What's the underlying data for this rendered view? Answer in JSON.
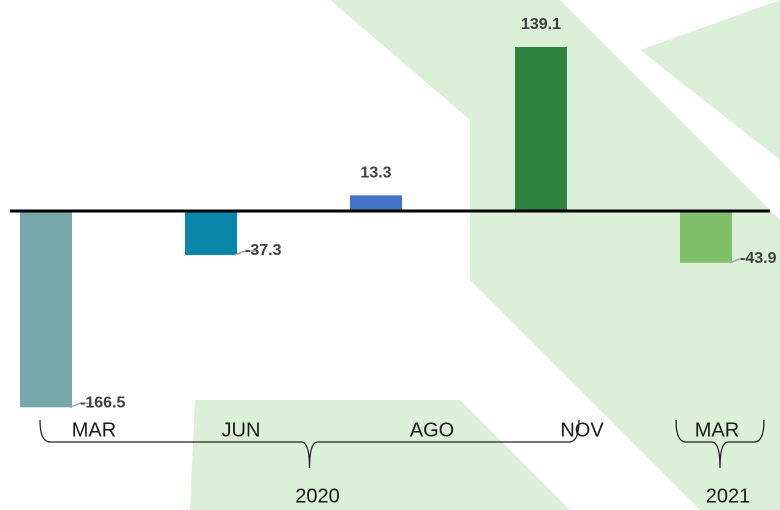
{
  "chart_data": {
    "type": "bar",
    "categories": [
      "MAR",
      "JUN",
      "AGO",
      "NOV",
      "MAR"
    ],
    "values": [
      -166.5,
      -37.3,
      13.3,
      139.1,
      -43.9
    ],
    "colors": [
      "#76a8aa",
      "#0a87a8",
      "#4472c4",
      "#2e8540",
      "#7fbf69"
    ],
    "groups": [
      {
        "label": "2020",
        "span": 4
      },
      {
        "label": "2021",
        "span": 1
      }
    ]
  }
}
